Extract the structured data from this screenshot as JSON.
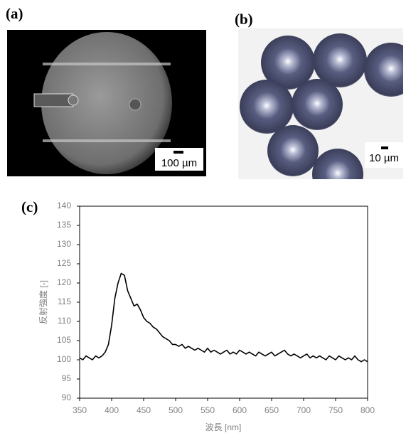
{
  "panels": {
    "a": {
      "label": "(a)",
      "scale_bar": "100 µm"
    },
    "b": {
      "label": "(b)",
      "scale_bar": "10 µm"
    },
    "c": {
      "label": "(c)"
    }
  },
  "chart_data": {
    "type": "line",
    "x_label": "波長 [nm]",
    "y_label": "反射強度 [-]",
    "x": [
      350,
      355,
      360,
      365,
      370,
      375,
      380,
      385,
      390,
      395,
      400,
      405,
      410,
      415,
      420,
      425,
      430,
      435,
      440,
      445,
      450,
      455,
      460,
      465,
      470,
      475,
      480,
      485,
      490,
      495,
      500,
      505,
      510,
      515,
      520,
      525,
      530,
      535,
      540,
      545,
      550,
      555,
      560,
      565,
      570,
      575,
      580,
      585,
      590,
      595,
      600,
      605,
      610,
      615,
      620,
      625,
      630,
      635,
      640,
      645,
      650,
      655,
      660,
      665,
      670,
      675,
      680,
      685,
      690,
      695,
      700,
      705,
      710,
      715,
      720,
      725,
      730,
      735,
      740,
      745,
      750,
      755,
      760,
      765,
      770,
      775,
      780,
      785,
      790,
      795,
      800
    ],
    "values": [
      100.5,
      100,
      101,
      100.5,
      100,
      101,
      100.5,
      101,
      102,
      104,
      109,
      116,
      120,
      122.5,
      122,
      118,
      116,
      114,
      114.5,
      113,
      111,
      110,
      109.5,
      108.5,
      108,
      107,
      106,
      105.5,
      105,
      104,
      104,
      103.5,
      104,
      103,
      103.5,
      103,
      102.5,
      103,
      102.5,
      102,
      103,
      102,
      102.5,
      102,
      101.5,
      102,
      102.5,
      101.5,
      102,
      101.5,
      102.5,
      102,
      101.5,
      102,
      101.5,
      101,
      102,
      101.5,
      101,
      101.5,
      102,
      101,
      101.5,
      102,
      102.5,
      101.5,
      101,
      101.5,
      101,
      100.5,
      101,
      101.5,
      100.5,
      101,
      100.5,
      101,
      100.5,
      100,
      101,
      100.5,
      100,
      101,
      100.5,
      100,
      100.5,
      100,
      101,
      100,
      99.5,
      100,
      99.5
    ],
    "color": "#000000",
    "xlim": [
      350,
      800
    ],
    "xticks": [
      350,
      400,
      450,
      500,
      550,
      600,
      650,
      700,
      750,
      800
    ],
    "ylim": [
      90,
      140
    ],
    "yticks": [
      90,
      95,
      100,
      105,
      110,
      115,
      120,
      125,
      130,
      135,
      140
    ]
  }
}
